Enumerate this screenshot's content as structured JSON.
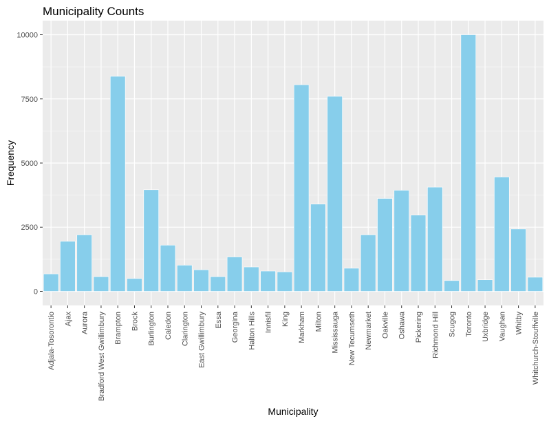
{
  "chart_data": {
    "type": "bar",
    "title": "Municipality Counts",
    "xlabel": "Municipality",
    "ylabel": "Frequency",
    "ylim": [
      -550,
      10550
    ],
    "yticks": [
      0,
      2500,
      5000,
      7500,
      10000
    ],
    "grid": true,
    "colors": {
      "bar": "#87CEEB",
      "bar_outline": "#FFFFFF",
      "panel": "#EBEBEB",
      "gridline": "#FFFFFF"
    },
    "categories": [
      "Adjala-Tosorontio",
      "Ajax",
      "Aurora",
      "Bradford West Gwillimbury",
      "Brampton",
      "Brock",
      "Burlington",
      "Caledon",
      "Clarington",
      "East Gwillimbury",
      "Essa",
      "Georgina",
      "Halton Hills",
      "Innisfil",
      "King",
      "Markham",
      "Milton",
      "Mississauga",
      "New Tecumseth",
      "Newmarket",
      "Oakville",
      "Oshawa",
      "Pickering",
      "Richmond Hill",
      "Scugog",
      "Toronto",
      "Uxbridge",
      "Vaughan",
      "Whitby",
      "Whitchurch-Stouffville"
    ],
    "values": [
      680,
      1950,
      2200,
      570,
      8380,
      500,
      3960,
      1800,
      1020,
      840,
      570,
      1340,
      950,
      790,
      760,
      8050,
      3400,
      7600,
      900,
      2200,
      3620,
      3940,
      2970,
      4060,
      420,
      10000,
      450,
      4460,
      2430,
      550
    ]
  }
}
